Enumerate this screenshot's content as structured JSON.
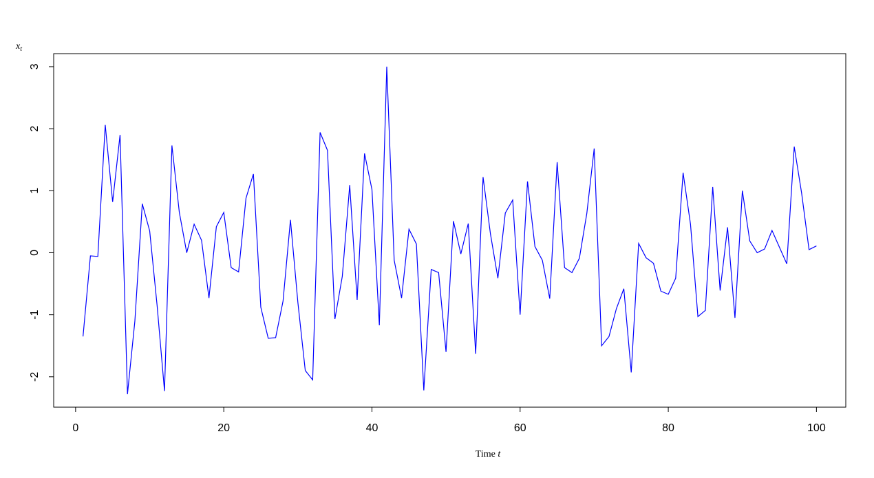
{
  "chart_data": {
    "type": "line",
    "xlabel": {
      "text": "Time",
      "var": "t"
    },
    "ylabel": {
      "text": "x",
      "sub": "t"
    },
    "color": "#0000ff",
    "x": [
      1,
      2,
      3,
      4,
      5,
      6,
      7,
      8,
      9,
      10,
      11,
      12,
      13,
      14,
      15,
      16,
      17,
      18,
      19,
      20,
      21,
      22,
      23,
      24,
      25,
      26,
      27,
      28,
      29,
      30,
      31,
      32,
      33,
      34,
      35,
      36,
      37,
      38,
      39,
      40,
      41,
      42,
      43,
      44,
      45,
      46,
      47,
      48,
      49,
      50,
      51,
      52,
      53,
      54,
      55,
      56,
      57,
      58,
      59,
      60,
      61,
      62,
      63,
      64,
      65,
      66,
      67,
      68,
      69,
      70,
      71,
      72,
      73,
      74,
      75,
      76,
      77,
      78,
      79,
      80,
      81,
      82,
      83,
      84,
      85,
      86,
      87,
      88,
      89,
      90,
      91,
      92,
      93,
      94,
      95,
      96,
      97,
      98,
      99,
      100
    ],
    "values": [
      -1.35,
      -0.05,
      -0.06,
      2.06,
      0.82,
      1.9,
      -2.28,
      -1.1,
      0.79,
      0.35,
      -0.85,
      -2.23,
      1.73,
      0.65,
      0.0,
      0.46,
      0.2,
      -0.73,
      0.42,
      0.65,
      -0.24,
      -0.31,
      0.88,
      1.27,
      -0.88,
      -1.38,
      -1.37,
      -0.78,
      0.53,
      -0.8,
      -1.9,
      -2.05,
      1.94,
      1.65,
      -1.07,
      -0.38,
      1.09,
      -0.76,
      1.6,
      1.02,
      -1.17,
      3.0,
      -0.12,
      -0.73,
      0.38,
      0.14,
      -2.22,
      -0.27,
      -0.32,
      -1.6,
      0.51,
      -0.02,
      0.47,
      -1.63,
      1.22,
      0.3,
      -0.41,
      0.64,
      0.85,
      -1.0,
      1.15,
      0.1,
      -0.12,
      -0.74,
      1.46,
      -0.24,
      -0.32,
      -0.09,
      0.63,
      1.68,
      -1.5,
      -1.35,
      -0.9,
      -0.58,
      -1.93,
      0.15,
      -0.08,
      -0.17,
      -0.62,
      -0.67,
      -0.41,
      1.29,
      0.46,
      -1.03,
      -0.93,
      1.06,
      -0.61,
      0.41,
      -1.05,
      1.0,
      0.19,
      0.0,
      0.06,
      0.36,
      0.09,
      -0.18,
      1.71,
      0.96,
      0.05,
      0.11
    ],
    "xlim": [
      -2.96,
      103.96
    ],
    "xticks": [
      0,
      20,
      40,
      60,
      80,
      100
    ],
    "ylim": [
      -2.49,
      3.21
    ],
    "yticks": [
      -2,
      -1,
      0,
      1,
      2,
      3
    ]
  }
}
